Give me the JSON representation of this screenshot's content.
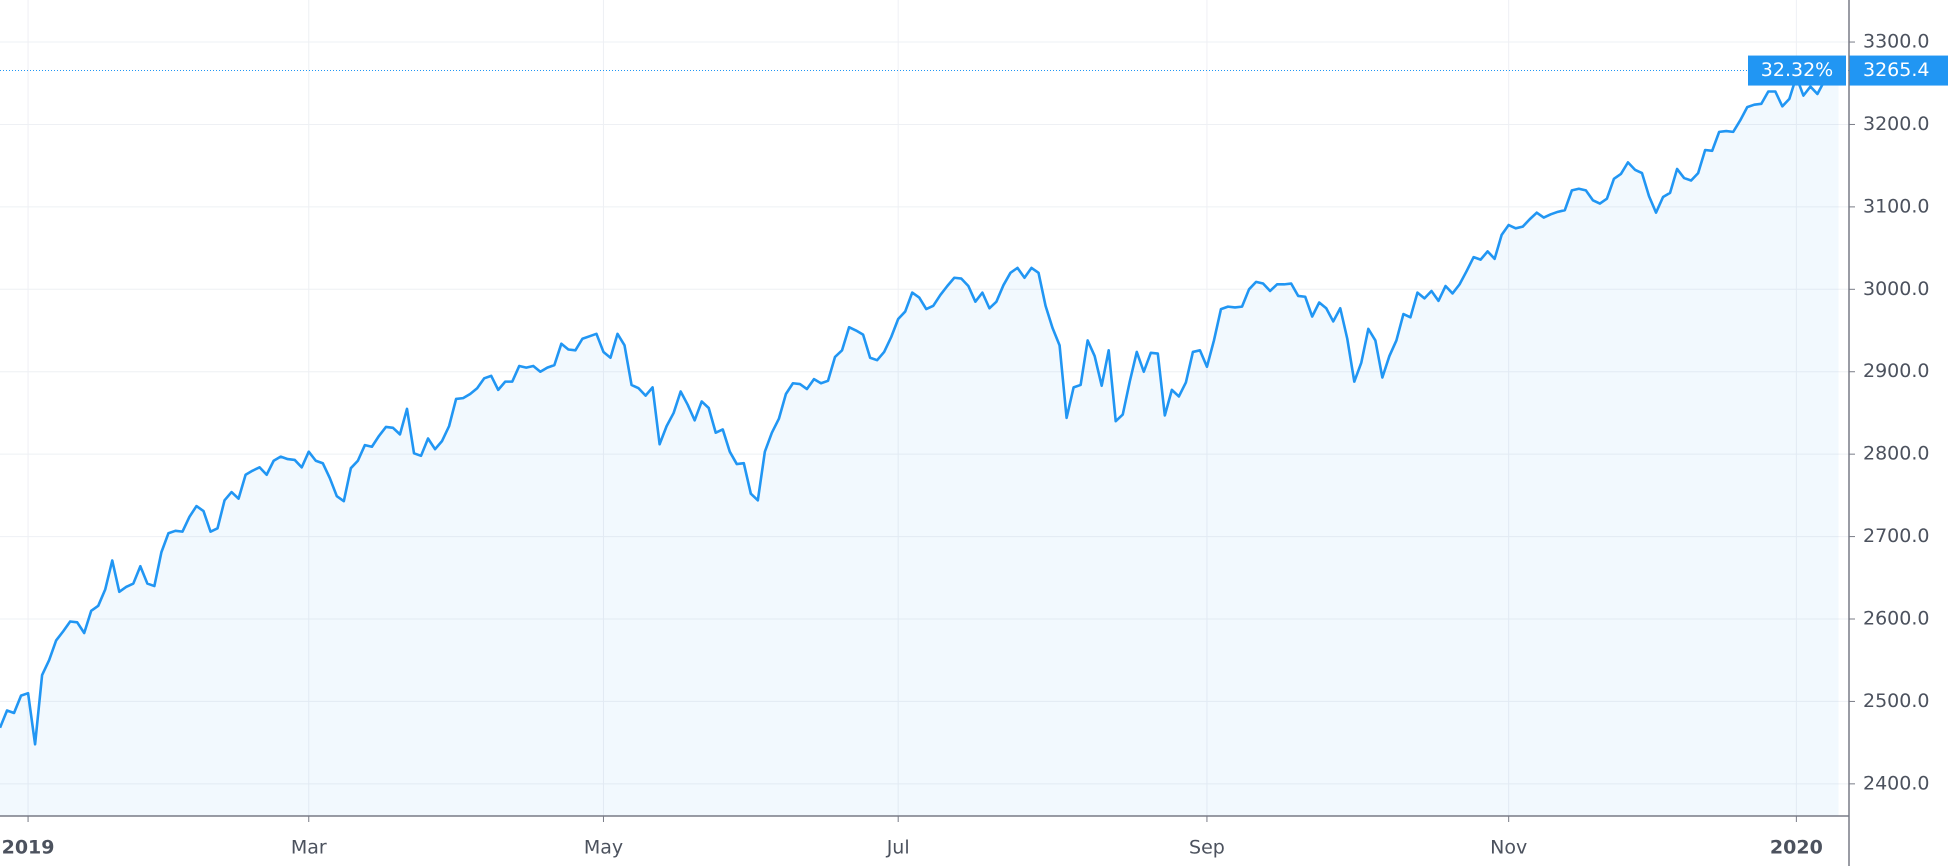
{
  "chart_data": {
    "type": "area",
    "color": "#2196f3",
    "fill": "rgba(33,150,243,0.06)",
    "grid": true,
    "xlim": [
      0,
      263.5
    ],
    "ylim": [
      2361,
      3351
    ],
    "yticks": [
      {
        "value": 2400,
        "label": "2400.0"
      },
      {
        "value": 2500,
        "label": "2500.0"
      },
      {
        "value": 2600,
        "label": "2600.0"
      },
      {
        "value": 2700,
        "label": "2700.0"
      },
      {
        "value": 2800,
        "label": "2800.0"
      },
      {
        "value": 2900,
        "label": "2900.0"
      },
      {
        "value": 3000,
        "label": "3000.0"
      },
      {
        "value": 3100,
        "label": "3100.0"
      },
      {
        "value": 3200,
        "label": "3200.0"
      },
      {
        "value": 3300,
        "label": "3300.0"
      }
    ],
    "xticks": [
      {
        "value": 4,
        "label": "2019"
      },
      {
        "value": 44,
        "label": "Mar"
      },
      {
        "value": 86,
        "label": "May"
      },
      {
        "value": 128,
        "label": "Jul"
      },
      {
        "value": 172,
        "label": "Sep"
      },
      {
        "value": 215,
        "label": "Nov"
      },
      {
        "value": 256,
        "label": "2020"
      }
    ],
    "change_label": "32.32%",
    "last_label": "3265.4",
    "values": [
      2468,
      2489,
      2486,
      2507,
      2510,
      2448,
      2532,
      2550,
      2574,
      2585,
      2597,
      2596,
      2583,
      2610,
      2616,
      2636,
      2671,
      2633,
      2639,
      2643,
      2664,
      2643,
      2640,
      2681,
      2704,
      2707,
      2706,
      2724,
      2737,
      2731,
      2706,
      2710,
      2744,
      2754,
      2746,
      2775,
      2780,
      2784,
      2775,
      2792,
      2797,
      2794,
      2793,
      2784,
      2803,
      2792,
      2789,
      2771,
      2749,
      2743,
      2783,
      2792,
      2811,
      2809,
      2822,
      2833,
      2832,
      2824,
      2855,
      2801,
      2798,
      2819,
      2806,
      2816,
      2834,
      2867,
      2868,
      2873,
      2880,
      2892,
      2895,
      2878,
      2888,
      2888,
      2907,
      2905,
      2907,
      2900,
      2905,
      2908,
      2934,
      2927,
      2926,
      2940,
      2943,
      2946,
      2924,
      2917,
      2946,
      2932,
      2884,
      2880,
      2871,
      2881,
      2812,
      2834,
      2850,
      2876,
      2860,
      2841,
      2864,
      2856,
      2826,
      2830,
      2803,
      2788,
      2789,
      2752,
      2744,
      2803,
      2826,
      2843,
      2873,
      2886,
      2885,
      2879,
      2891,
      2886,
      2889,
      2918,
      2926,
      2954,
      2950,
      2945,
      2917,
      2914,
      2924,
      2942,
      2964,
      2973,
      2996,
      2990,
      2976,
      2980,
      2993,
      3004,
      3014,
      3013,
      3004,
      2985,
      2996,
      2977,
      2985,
      3005,
      3020,
      3026,
      3014,
      3026,
      3020,
      2980,
      2953,
      2932,
      2844,
      2881,
      2884,
      2938,
      2919,
      2883,
      2926,
      2840,
      2848,
      2888,
      2924,
      2900,
      2923,
      2922,
      2847,
      2878,
      2870,
      2887,
      2924,
      2926,
      2906,
      2938,
      2976,
      2979,
      2978,
      2979,
      3000,
      3009,
      3007,
      2998,
      3006,
      3006,
      3007,
      2992,
      2991,
      2967,
      2984,
      2977,
      2961,
      2977,
      2940,
      2888,
      2911,
      2952,
      2938,
      2893,
      2919,
      2938,
      2970,
      2966,
      2996,
      2989,
      2998,
      2986,
      3004,
      2995,
      3006,
      3022,
      3039,
      3036,
      3046,
      3037,
      3066,
      3078,
      3074,
      3076,
      3085,
      3093,
      3087,
      3091,
      3094,
      3096,
      3120,
      3122,
      3120,
      3108,
      3104,
      3110,
      3134,
      3140,
      3154,
      3145,
      3141,
      3113,
      3093,
      3112,
      3117,
      3146,
      3135,
      3132,
      3141,
      3169,
      3168,
      3191,
      3192,
      3191,
      3205,
      3221,
      3224,
      3225,
      3240,
      3240,
      3222,
      3231,
      3258,
      3235,
      3246,
      3237,
      3253,
      3275,
      3265.4
    ]
  }
}
